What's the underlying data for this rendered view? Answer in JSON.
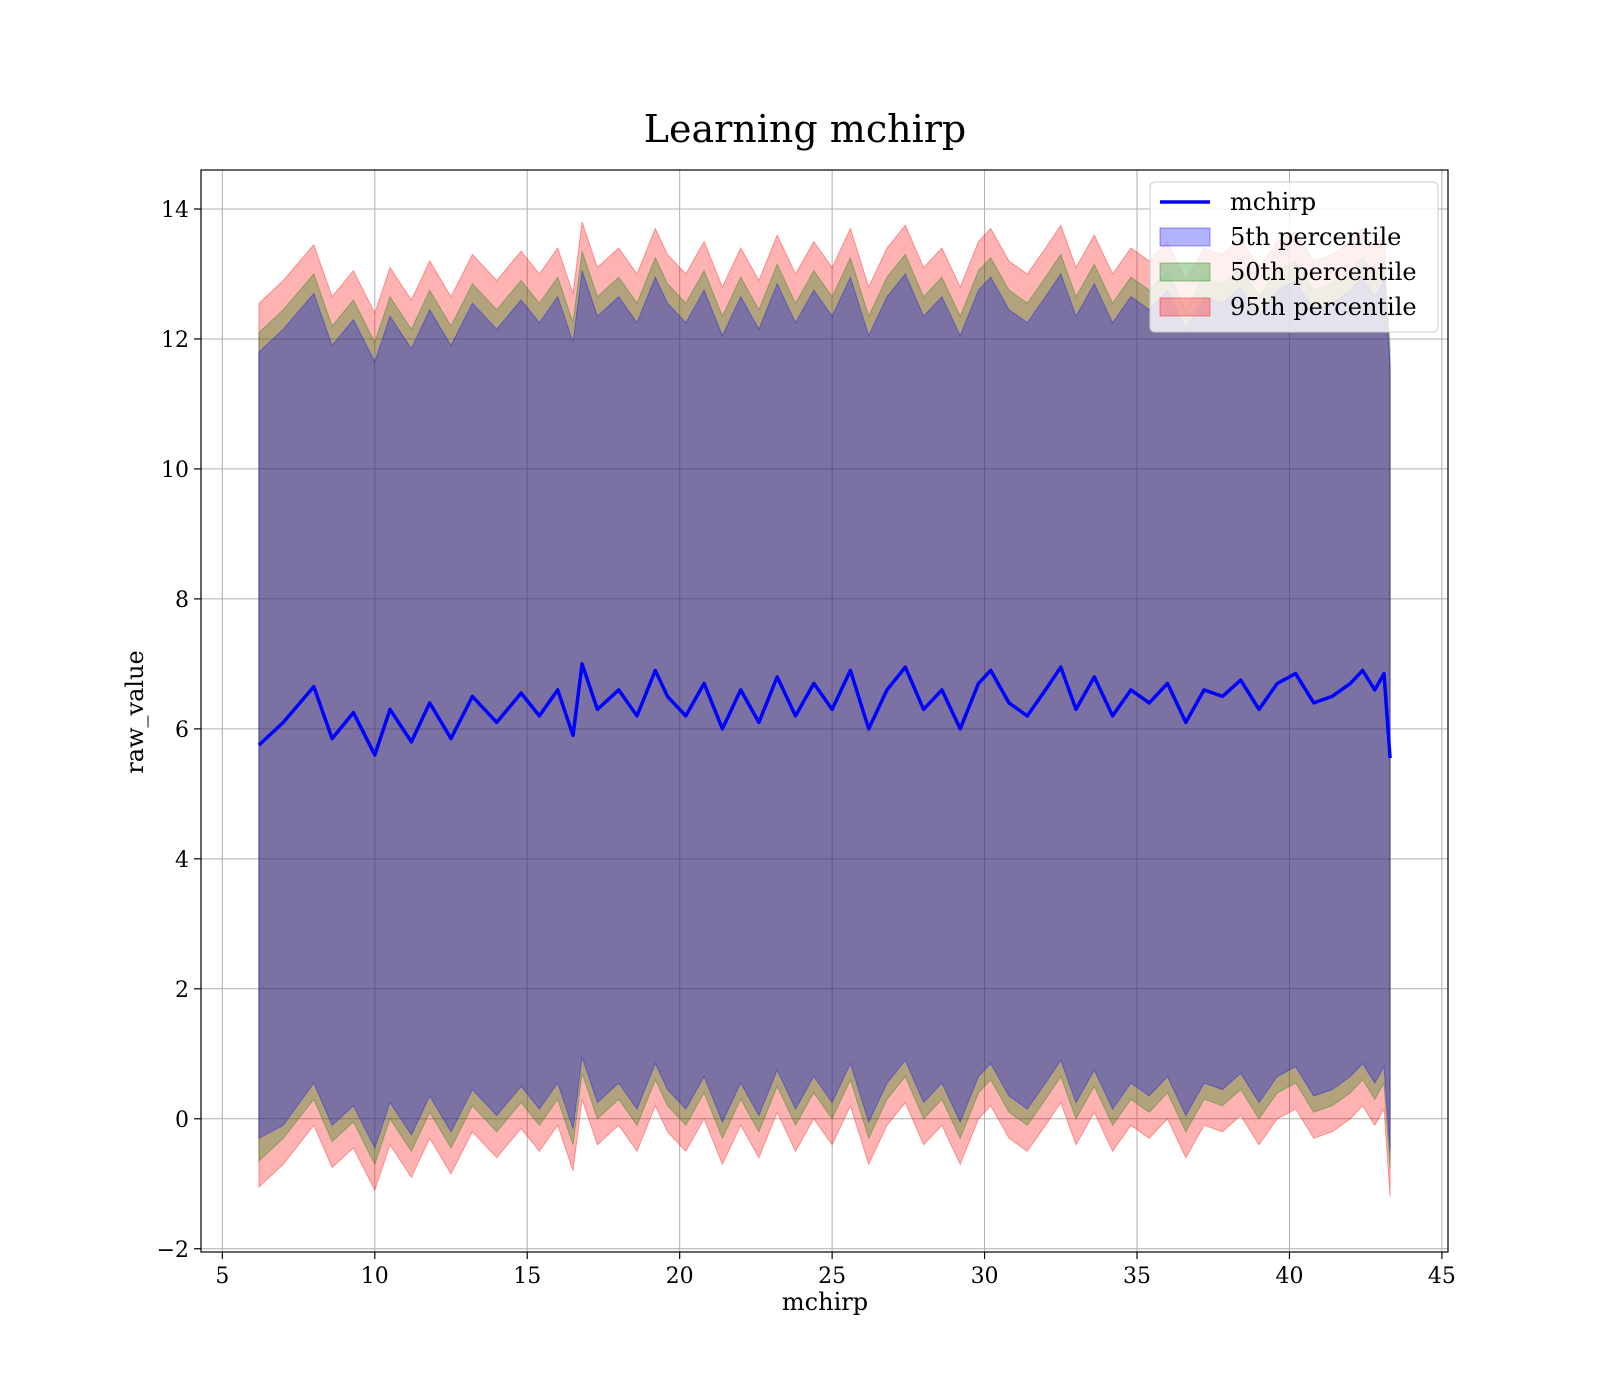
{
  "chart_data": {
    "type": "line",
    "title": "Learning mchirp",
    "xlabel": "mchirp",
    "ylabel": "raw_value",
    "xlim": [
      4.3,
      45.2
    ],
    "ylim": [
      -2.05,
      14.6
    ],
    "xticks": [
      5,
      10,
      15,
      20,
      25,
      30,
      35,
      40,
      45
    ],
    "yticks": [
      -2,
      0,
      2,
      4,
      6,
      8,
      10,
      12,
      14
    ],
    "grid": true,
    "legend_position": "top-right",
    "x": [
      6.2,
      7.0,
      8.0,
      8.6,
      9.3,
      10.0,
      10.5,
      11.2,
      11.8,
      12.5,
      13.2,
      14.0,
      14.8,
      15.4,
      16.0,
      16.5,
      16.8,
      17.3,
      18.0,
      18.6,
      19.2,
      19.6,
      20.2,
      20.8,
      21.4,
      22.0,
      22.6,
      23.2,
      23.8,
      24.4,
      25.0,
      25.6,
      26.2,
      26.8,
      27.4,
      28.0,
      28.6,
      29.2,
      29.8,
      30.2,
      30.8,
      31.4,
      32.0,
      32.5,
      33.0,
      33.6,
      34.2,
      34.8,
      35.4,
      36.0,
      36.6,
      37.2,
      37.8,
      38.4,
      39.0,
      39.6,
      40.2,
      40.8,
      41.4,
      42.0,
      42.4,
      42.8,
      43.1,
      43.3
    ],
    "series": [
      {
        "name": "mchirp",
        "type": "line",
        "color": "#0000ff",
        "values": [
          5.75,
          6.1,
          6.65,
          5.85,
          6.25,
          5.6,
          6.3,
          5.8,
          6.4,
          5.85,
          6.5,
          6.1,
          6.55,
          6.2,
          6.6,
          5.9,
          7.0,
          6.3,
          6.6,
          6.2,
          6.9,
          6.5,
          6.2,
          6.7,
          6.0,
          6.6,
          6.1,
          6.8,
          6.2,
          6.7,
          6.3,
          6.9,
          6.0,
          6.6,
          6.95,
          6.3,
          6.6,
          6.0,
          6.7,
          6.9,
          6.4,
          6.2,
          6.6,
          6.95,
          6.3,
          6.8,
          6.2,
          6.6,
          6.4,
          6.7,
          6.1,
          6.6,
          6.5,
          6.75,
          6.3,
          6.7,
          6.85,
          6.4,
          6.5,
          6.7,
          6.9,
          6.6,
          6.85,
          5.55
        ]
      },
      {
        "name": "5th percentile",
        "type": "band",
        "color": "#0000ff",
        "lower": [
          -0.3,
          -0.1,
          0.55,
          -0.1,
          0.2,
          -0.45,
          0.25,
          -0.25,
          0.35,
          -0.2,
          0.45,
          0.05,
          0.5,
          0.15,
          0.55,
          -0.15,
          0.95,
          0.25,
          0.55,
          0.15,
          0.85,
          0.45,
          0.15,
          0.65,
          -0.05,
          0.55,
          0.05,
          0.75,
          0.15,
          0.65,
          0.25,
          0.85,
          -0.05,
          0.55,
          0.9,
          0.25,
          0.55,
          -0.05,
          0.65,
          0.85,
          0.35,
          0.15,
          0.55,
          0.9,
          0.25,
          0.75,
          0.15,
          0.55,
          0.35,
          0.65,
          0.05,
          0.55,
          0.45,
          0.7,
          0.25,
          0.65,
          0.8,
          0.35,
          0.45,
          0.65,
          0.85,
          0.55,
          0.8,
          -0.5
        ],
        "upper": [
          11.8,
          12.15,
          12.7,
          11.9,
          12.3,
          11.65,
          12.35,
          11.85,
          12.45,
          11.9,
          12.55,
          12.15,
          12.6,
          12.25,
          12.65,
          11.95,
          13.05,
          12.35,
          12.65,
          12.25,
          12.95,
          12.55,
          12.25,
          12.75,
          12.05,
          12.65,
          12.15,
          12.85,
          12.25,
          12.75,
          12.35,
          12.95,
          12.05,
          12.65,
          13.0,
          12.35,
          12.65,
          12.05,
          12.75,
          12.95,
          12.45,
          12.25,
          12.65,
          13.0,
          12.35,
          12.85,
          12.25,
          12.65,
          12.45,
          12.75,
          12.15,
          12.65,
          12.55,
          12.8,
          12.35,
          12.75,
          12.9,
          12.45,
          12.55,
          12.75,
          12.95,
          12.65,
          12.9,
          11.6
        ]
      },
      {
        "name": "50th percentile",
        "type": "band",
        "color": "#008000",
        "lower": [
          -0.65,
          -0.3,
          0.3,
          -0.35,
          -0.05,
          -0.7,
          0.0,
          -0.5,
          0.1,
          -0.45,
          0.2,
          -0.2,
          0.25,
          -0.1,
          0.3,
          -0.4,
          0.7,
          0.0,
          0.3,
          -0.1,
          0.6,
          0.2,
          -0.1,
          0.4,
          -0.3,
          0.3,
          -0.2,
          0.5,
          -0.1,
          0.4,
          0.0,
          0.6,
          -0.3,
          0.3,
          0.65,
          0.0,
          0.3,
          -0.3,
          0.4,
          0.6,
          0.1,
          -0.1,
          0.3,
          0.65,
          0.0,
          0.5,
          -0.1,
          0.3,
          0.1,
          0.4,
          -0.2,
          0.3,
          0.2,
          0.45,
          0.0,
          0.4,
          0.55,
          0.1,
          0.2,
          0.4,
          0.6,
          0.3,
          0.55,
          -0.75
        ],
        "upper": [
          12.1,
          12.45,
          13.0,
          12.2,
          12.6,
          11.95,
          12.65,
          12.15,
          12.75,
          12.2,
          12.85,
          12.45,
          12.9,
          12.55,
          12.95,
          12.25,
          13.35,
          12.65,
          12.95,
          12.55,
          13.25,
          12.85,
          12.55,
          13.05,
          12.35,
          12.95,
          12.45,
          13.15,
          12.55,
          13.05,
          12.65,
          13.25,
          12.35,
          12.95,
          13.3,
          12.65,
          12.95,
          12.35,
          13.05,
          13.25,
          12.75,
          12.55,
          12.95,
          13.3,
          12.65,
          13.15,
          12.55,
          12.95,
          12.75,
          13.05,
          12.45,
          12.95,
          12.85,
          13.1,
          12.65,
          13.05,
          13.2,
          12.75,
          12.85,
          13.05,
          13.25,
          12.95,
          13.2,
          11.9
        ]
      },
      {
        "name": "95th percentile",
        "type": "band",
        "color": "#ff0000",
        "lower": [
          -1.05,
          -0.7,
          -0.1,
          -0.75,
          -0.45,
          -1.1,
          -0.4,
          -0.9,
          -0.3,
          -0.85,
          -0.2,
          -0.6,
          -0.15,
          -0.5,
          -0.1,
          -0.8,
          0.3,
          -0.4,
          -0.1,
          -0.5,
          0.2,
          -0.2,
          -0.5,
          0.0,
          -0.7,
          -0.1,
          -0.6,
          0.1,
          -0.5,
          0.0,
          -0.4,
          0.2,
          -0.7,
          -0.1,
          0.25,
          -0.4,
          -0.1,
          -0.7,
          0.0,
          0.2,
          -0.3,
          -0.5,
          -0.1,
          0.25,
          -0.4,
          0.1,
          -0.5,
          -0.1,
          -0.3,
          0.0,
          -0.6,
          -0.1,
          -0.2,
          0.05,
          -0.4,
          0.0,
          0.15,
          -0.3,
          -0.2,
          0.0,
          0.2,
          -0.1,
          0.15,
          -1.2
        ],
        "upper": [
          12.55,
          12.9,
          13.45,
          12.65,
          13.05,
          12.4,
          13.1,
          12.6,
          13.2,
          12.65,
          13.3,
          12.9,
          13.35,
          13.0,
          13.4,
          12.7,
          13.8,
          13.1,
          13.4,
          13.0,
          13.7,
          13.3,
          13.0,
          13.5,
          12.8,
          13.4,
          12.9,
          13.6,
          13.0,
          13.5,
          13.1,
          13.7,
          12.8,
          13.4,
          13.75,
          13.1,
          13.4,
          12.8,
          13.5,
          13.7,
          13.2,
          13.0,
          13.4,
          13.75,
          13.1,
          13.6,
          13.0,
          13.4,
          13.2,
          13.5,
          12.9,
          13.4,
          13.3,
          13.55,
          13.1,
          13.5,
          13.65,
          13.2,
          13.3,
          13.5,
          13.7,
          13.4,
          13.65,
          11.5
        ]
      }
    ]
  }
}
